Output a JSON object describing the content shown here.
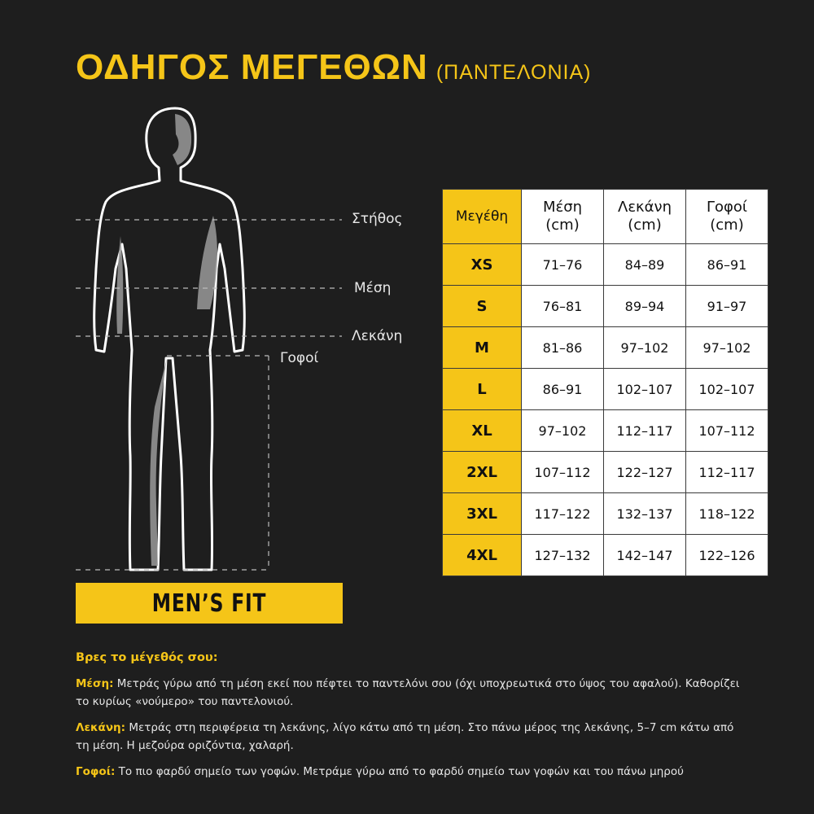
{
  "colors": {
    "accent": "#f5c518",
    "background": "#1e1e1e"
  },
  "header": {
    "title": "ΟΔΗΓΟΣ ΜΕΓΕΘΩΝ",
    "subtitle": "(ΠΑΝΤΕΛΟΝΙΑ)"
  },
  "figure": {
    "labels": {
      "chest": "Στήθος",
      "waist": "Μέση",
      "pelvis": "Λεκάνη",
      "hips": "Γοφοί"
    },
    "banner": "MEN’S FIT"
  },
  "table": {
    "headers": [
      {
        "line1": "Μεγέθη",
        "line2": ""
      },
      {
        "line1": "Μέση",
        "line2": "(cm)"
      },
      {
        "line1": "Λεκάνη",
        "line2": "(cm)"
      },
      {
        "line1": "Γοφοί",
        "line2": "(cm)"
      }
    ],
    "rows": [
      [
        "XS",
        "71–76",
        "84–89",
        "86–91"
      ],
      [
        "S",
        "76–81",
        "89–94",
        "91–97"
      ],
      [
        "M",
        "81–86",
        "97–102",
        "97–102"
      ],
      [
        "L",
        "86–91",
        "102–107",
        "102–107"
      ],
      [
        "XL",
        "97–102",
        "112–117",
        "107–112"
      ],
      [
        "2XL",
        "107–112",
        "122–127",
        "112–117"
      ],
      [
        "3XL",
        "117–122",
        "132–137",
        "118–122"
      ],
      [
        "4XL",
        "127–132",
        "142–147",
        "122–126"
      ]
    ]
  },
  "notes": {
    "heading": "Βρες το μέγεθός σου:",
    "items": [
      {
        "key": "Μέση:",
        "text": " Μετράς γύρω από τη μέση εκεί που πέφτει το παντελόνι σου (όχι υποχρεωτικά στο ύψος του αφαλού). Καθορίζει το κυρίως «νούμερο» του παντελονιού."
      },
      {
        "key": "Λεκάνη:",
        "text": " Μετράς στη περιφέρεια τη λεκάνης, λίγο κάτω από τη μέση. Στο πάνω μέρος της λεκάνης, 5–7 cm κάτω από τη μέση. Η μεζούρα οριζόντια, χαλαρή."
      },
      {
        "key": "Γοφοί:",
        "text": " Το πιο φαρδύ σημείο των γοφών. Μετράμε γύρω από το φαρδύ σημείο των γοφών και του πάνω μηρού"
      }
    ]
  }
}
